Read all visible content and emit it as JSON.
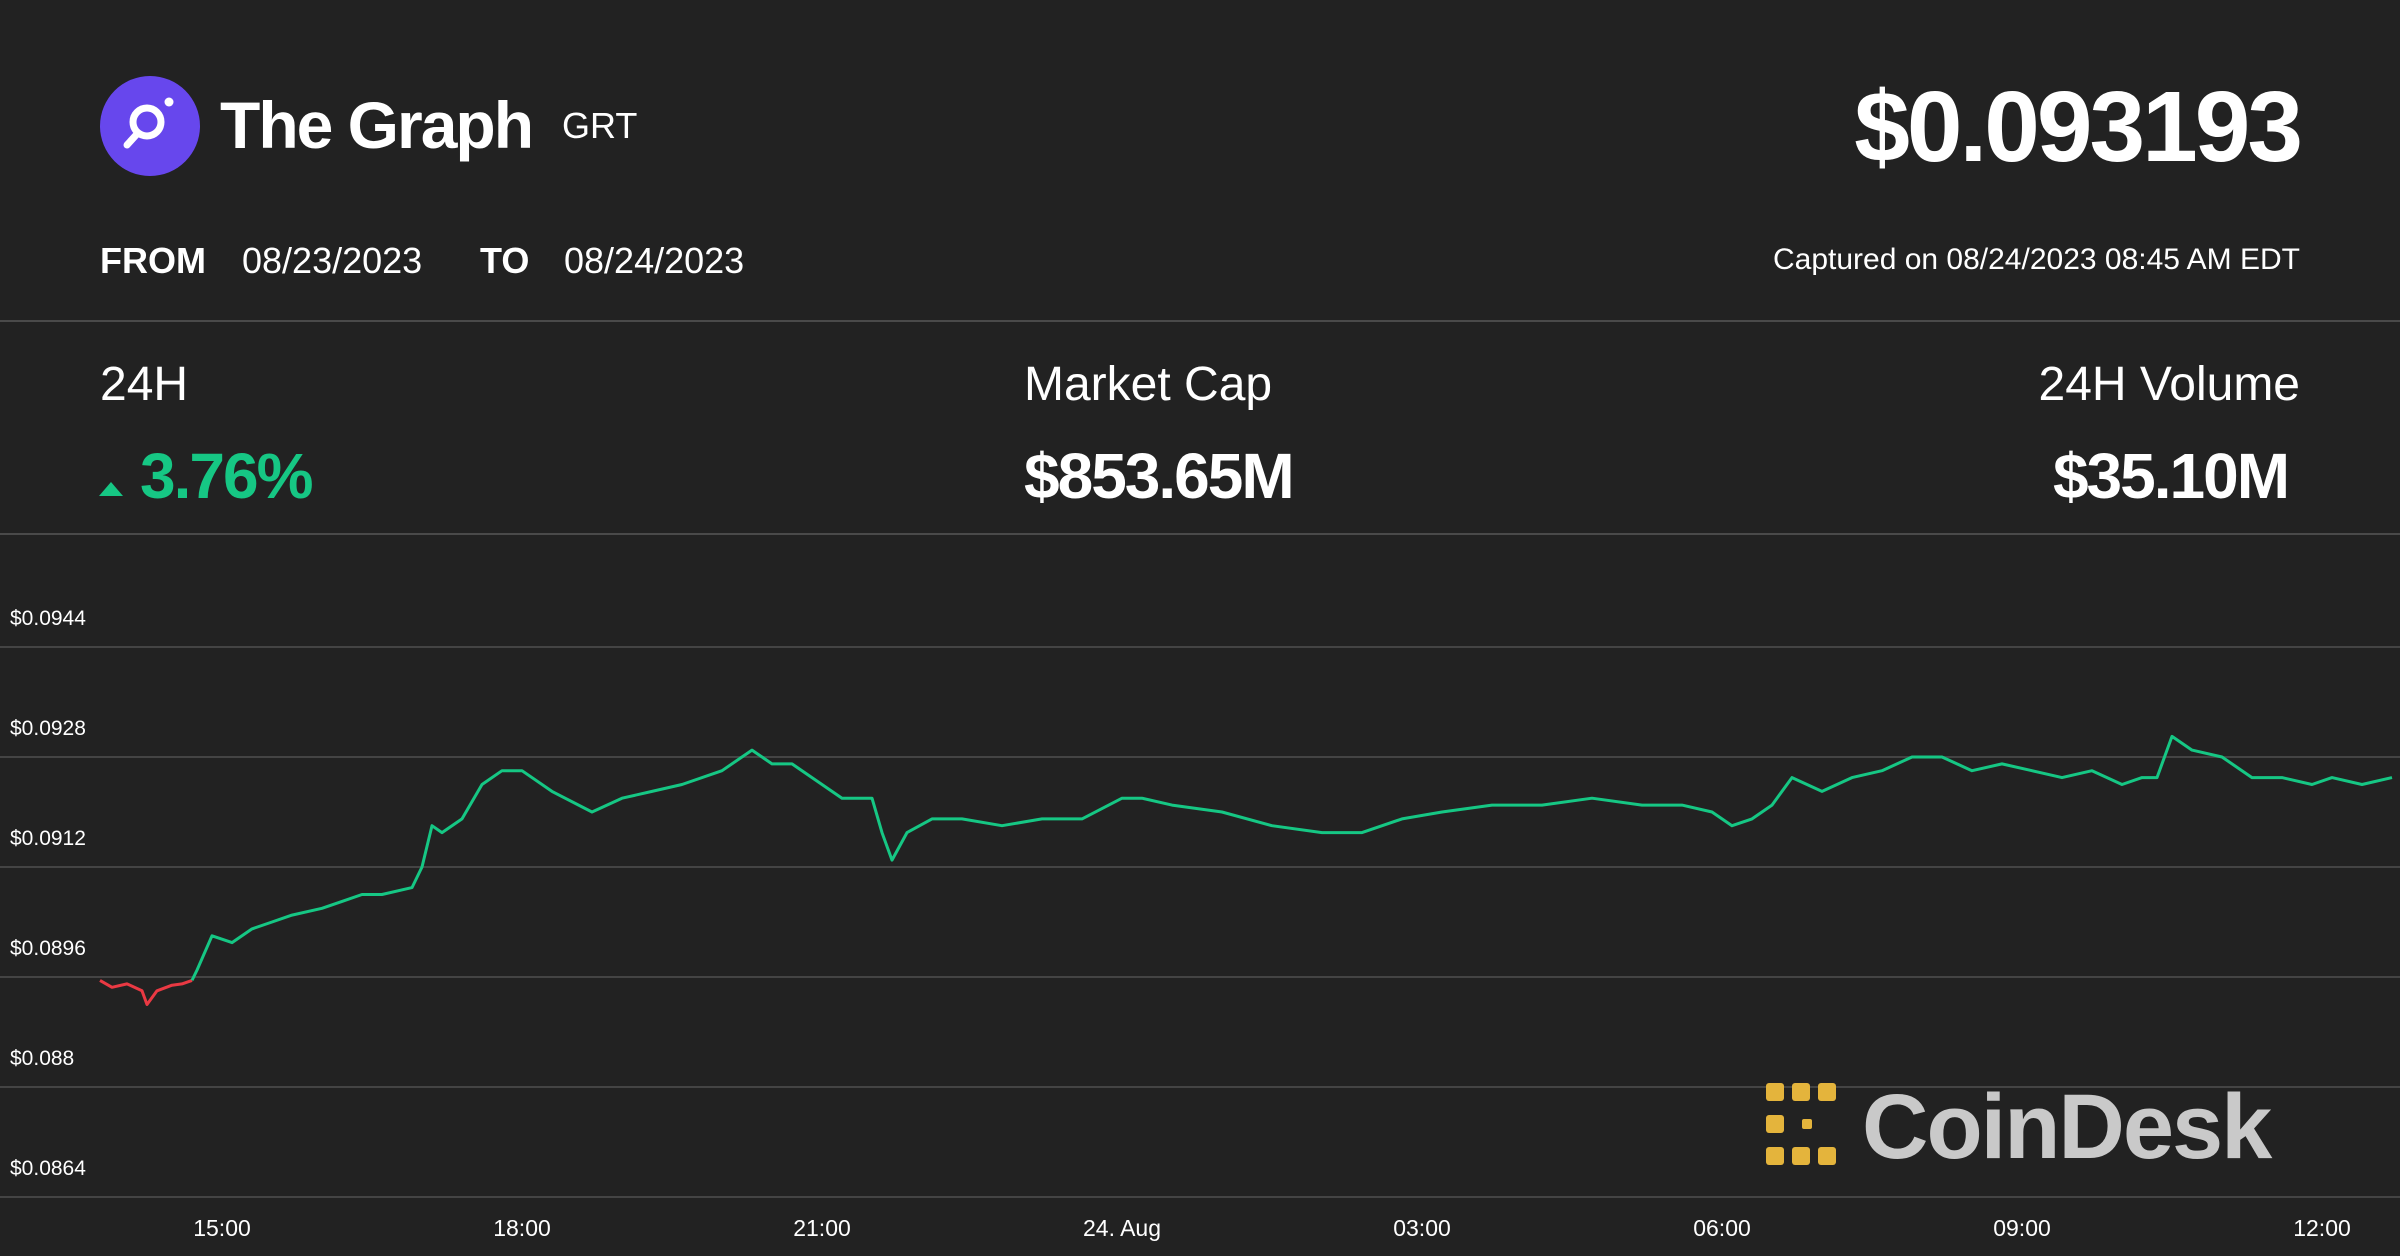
{
  "header": {
    "coin_name": "The Graph",
    "coin_symbol": "GRT",
    "price": "$0.093193",
    "from_label": "FROM",
    "from_date": "08/23/2023",
    "to_label": "TO",
    "to_date": "08/24/2023",
    "captured": "Captured on 08/24/2023 08:45 AM EDT",
    "logo_icon": "the-graph-logo-icon",
    "logo_color": "#6747ed"
  },
  "stats": {
    "change_label": "24H",
    "change_value": "3.76%",
    "change_direction_icon": "up-triangle-icon",
    "change_color": "#16c784",
    "market_cap_label": "Market Cap",
    "market_cap_value": "$853.65M",
    "volume_label": "24H Volume",
    "volume_value": "$35.10M"
  },
  "watermark": {
    "text": "CoinDesk",
    "icon": "coindesk-logo-icon",
    "color": "#e4b43c"
  },
  "chart_data": {
    "type": "line",
    "title": "",
    "xlabel": "",
    "ylabel": "",
    "y_ticks": [
      "$0.0944",
      "$0.0928",
      "$0.0912",
      "$0.0896",
      "$0.088",
      "$0.0864"
    ],
    "y_tick_values": [
      0.0944,
      0.0928,
      0.0912,
      0.0896,
      0.088,
      0.0864
    ],
    "x_ticks": [
      "15:00",
      "18:00",
      "21:00",
      "24. Aug",
      "03:00",
      "06:00",
      "09:00",
      "12:00"
    ],
    "x_tick_hours": [
      15,
      18,
      21,
      24,
      27,
      30,
      33,
      36
    ],
    "ylim": [
      0.0864,
      0.0944
    ],
    "xlim": [
      13.78,
      36.7
    ],
    "grid": true,
    "colors": {
      "up": "#16c784",
      "down": "#ea3943"
    },
    "series": [
      {
        "x": [
          13.78,
          13.9,
          14.05,
          14.2,
          14.25,
          14.35,
          14.5,
          14.6,
          14.7,
          14.75,
          14.9,
          15.1,
          15.3,
          15.5,
          15.7,
          16.0,
          16.2,
          16.4,
          16.6,
          16.9,
          17.0,
          17.1,
          17.2,
          17.4,
          17.6,
          17.8,
          18.0,
          18.3,
          18.7,
          19.0,
          19.3,
          19.6,
          20.0,
          20.3,
          20.5,
          20.7,
          21.0,
          21.2,
          21.5,
          21.6,
          21.7,
          21.85,
          22.1,
          22.4,
          22.8,
          23.2,
          23.6,
          24.0,
          24.2,
          24.5,
          25.0,
          25.5,
          26.0,
          26.4,
          26.8,
          27.2,
          27.7,
          28.2,
          28.7,
          29.2,
          29.6,
          29.9,
          30.1,
          30.3,
          30.5,
          30.7,
          31.0,
          31.3,
          31.6,
          31.9,
          32.2,
          32.5,
          32.8,
          33.1,
          33.4,
          33.7,
          34.0,
          34.2,
          34.35,
          34.5,
          34.7,
          35.0,
          35.3,
          35.6,
          35.9,
          36.1,
          36.4,
          36.7
        ],
        "y": [
          0.08955,
          0.08945,
          0.0895,
          0.0894,
          0.0892,
          0.0894,
          0.08948,
          0.0895,
          0.08955,
          0.0897,
          0.0902,
          0.0901,
          0.0903,
          0.0904,
          0.0905,
          0.0906,
          0.0907,
          0.0908,
          0.0908,
          0.0909,
          0.0912,
          0.0918,
          0.0917,
          0.0919,
          0.0924,
          0.0926,
          0.0926,
          0.0923,
          0.092,
          0.0922,
          0.0923,
          0.0924,
          0.0926,
          0.0929,
          0.0927,
          0.0927,
          0.0924,
          0.0922,
          0.0922,
          0.0917,
          0.0913,
          0.0917,
          0.0919,
          0.0919,
          0.0918,
          0.0919,
          0.0919,
          0.0922,
          0.0922,
          0.0921,
          0.092,
          0.0918,
          0.0917,
          0.0917,
          0.0919,
          0.092,
          0.0921,
          0.0921,
          0.0922,
          0.0921,
          0.0921,
          0.092,
          0.0918,
          0.0919,
          0.0921,
          0.0925,
          0.0923,
          0.0925,
          0.0926,
          0.0928,
          0.0928,
          0.0926,
          0.0927,
          0.0926,
          0.0925,
          0.0926,
          0.0924,
          0.0925,
          0.0925,
          0.0931,
          0.0929,
          0.0928,
          0.0925,
          0.0925,
          0.0924,
          0.0925,
          0.0924,
          0.0925
        ]
      }
    ]
  }
}
